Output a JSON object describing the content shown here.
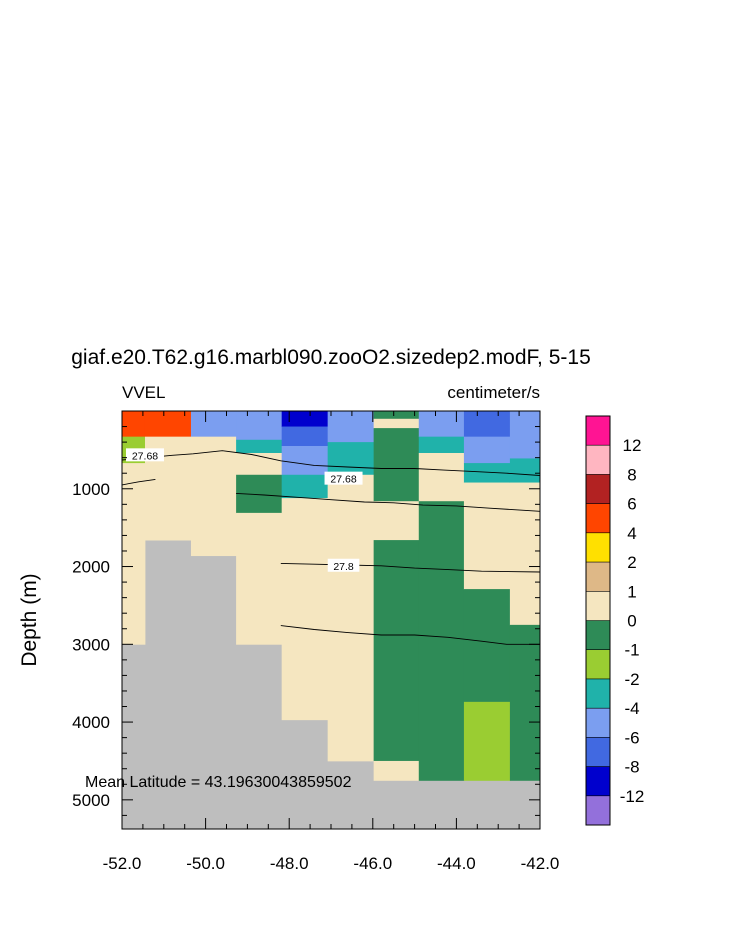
{
  "chart_data": {
    "type": "heatmap",
    "title": "giaf.e20.T62.g16.marbl090.zooO2.sizedep2.modF, 5-15",
    "left_label": "VVEL",
    "right_label": "centimeter/s",
    "ylabel": "Depth (m)",
    "annotation": "Mean Latitude = 43.19630043859502",
    "xlim": [
      -52.0,
      -42.0
    ],
    "ylim": [
      0,
      5375
    ],
    "y_inverted": true,
    "xticks": [
      -52.0,
      -50.0,
      -48.0,
      -46.0,
      -44.0,
      -42.0
    ],
    "xtick_labels": [
      "-52.0",
      "-50.0",
      "-48.0",
      "-46.0",
      "-44.0",
      "-42.0"
    ],
    "yticks": [
      1000,
      2000,
      3000,
      4000,
      5000
    ],
    "ytick_labels": [
      "1000",
      "2000",
      "3000",
      "4000",
      "5000"
    ],
    "missing_color": "#bebebe",
    "colorbar": {
      "levels": [
        "12",
        "8",
        "6",
        "4",
        "2",
        "1",
        "0",
        "-1",
        "-2",
        "-4",
        "-6",
        "-8",
        "-12"
      ],
      "colors": [
        "#ff1493",
        "#ffb6c1",
        "#b22222",
        "#ff4500",
        "#ffe000",
        "#deb887",
        "#f5e6c0",
        "#2e8b57",
        "#9acd32",
        "#20b2aa",
        "#7b9ef0",
        "#4169e1",
        "#0000cd",
        "#9370db"
      ]
    },
    "columns": [
      {
        "x0": -52.0,
        "x1": -51.45,
        "cells": [
          [
            0,
            330,
            3
          ],
          [
            330,
            670,
            8
          ],
          [
            670,
            3000,
            6
          ]
        ]
      },
      {
        "x0": -51.45,
        "x1": -50.35,
        "cells": [
          [
            0,
            330,
            3
          ],
          [
            330,
            1660,
            6
          ]
        ]
      },
      {
        "x0": -50.35,
        "x1": -49.27,
        "cells": [
          [
            0,
            330,
            10
          ],
          [
            330,
            1860,
            6
          ]
        ]
      },
      {
        "x0": -49.27,
        "x1": -48.18,
        "cells": [
          [
            0,
            370,
            10
          ],
          [
            370,
            540,
            9
          ],
          [
            540,
            820,
            6
          ],
          [
            820,
            1310,
            7
          ],
          [
            1310,
            3000,
            6
          ]
        ]
      },
      {
        "x0": -48.18,
        "x1": -47.08,
        "cells": [
          [
            0,
            200,
            12
          ],
          [
            200,
            450,
            11
          ],
          [
            450,
            820,
            10
          ],
          [
            820,
            1120,
            9
          ],
          [
            1120,
            3970,
            6
          ]
        ]
      },
      {
        "x0": -47.08,
        "x1": -45.98,
        "cells": [
          [
            0,
            400,
            10
          ],
          [
            400,
            820,
            9
          ],
          [
            820,
            4500,
            6
          ]
        ]
      },
      {
        "x0": -45.98,
        "x1": -44.9,
        "cells": [
          [
            0,
            100,
            7
          ],
          [
            100,
            220,
            6
          ],
          [
            220,
            1160,
            7
          ],
          [
            1160,
            1660,
            6
          ],
          [
            1660,
            4500,
            7
          ],
          [
            4500,
            4750,
            6
          ]
        ]
      },
      {
        "x0": -44.9,
        "x1": -43.82,
        "cells": [
          [
            0,
            330,
            10
          ],
          [
            330,
            540,
            9
          ],
          [
            540,
            1160,
            6
          ],
          [
            1160,
            4750,
            7
          ]
        ]
      },
      {
        "x0": -43.82,
        "x1": -42.72,
        "cells": [
          [
            0,
            330,
            11
          ],
          [
            330,
            670,
            10
          ],
          [
            670,
            920,
            9
          ],
          [
            920,
            2290,
            6
          ],
          [
            2290,
            3740,
            7
          ],
          [
            3740,
            4750,
            8
          ],
          [
            4750,
            4750,
            7
          ]
        ]
      },
      {
        "x0": -42.72,
        "x1": -42.0,
        "cells": [
          [
            0,
            610,
            10
          ],
          [
            610,
            920,
            9
          ],
          [
            920,
            2750,
            6
          ],
          [
            2750,
            4750,
            7
          ]
        ]
      }
    ],
    "contours": [
      {
        "label": "27.68",
        "label_at": [
          -51.45,
          570
        ],
        "points": [
          [
            -52.0,
            630
          ],
          [
            -51.4,
            600
          ],
          [
            -50.8,
            570
          ],
          [
            -50.3,
            550
          ],
          [
            -49.6,
            510
          ],
          [
            -48.9,
            560
          ],
          [
            -48.2,
            640
          ],
          [
            -47.4,
            700
          ],
          [
            -46.6,
            720
          ],
          [
            -45.8,
            740
          ],
          [
            -45.0,
            740
          ],
          [
            -44.3,
            760
          ],
          [
            -43.5,
            780
          ],
          [
            -42.8,
            800
          ],
          [
            -42.0,
            830
          ]
        ]
      },
      {
        "label": "27.68",
        "label_at": [
          -46.7,
          870
        ],
        "points": [
          [
            -52.0,
            950
          ],
          [
            -51.6,
            910
          ],
          [
            -51.2,
            880
          ]
        ]
      },
      {
        "label": "",
        "label_at": null,
        "points": [
          [
            -49.27,
            1060
          ],
          [
            -48.6,
            1080
          ],
          [
            -47.8,
            1110
          ],
          [
            -47.0,
            1140
          ],
          [
            -46.2,
            1170
          ],
          [
            -45.5,
            1180
          ],
          [
            -44.8,
            1210
          ],
          [
            -44.0,
            1220
          ],
          [
            -43.2,
            1250
          ],
          [
            -42.0,
            1290
          ]
        ]
      },
      {
        "label": "27.8",
        "label_at": [
          -46.7,
          1990
        ],
        "points": [
          [
            -48.2,
            1960
          ],
          [
            -47.4,
            1970
          ],
          [
            -46.6,
            1980
          ],
          [
            -45.8,
            1990
          ],
          [
            -45.0,
            2020
          ],
          [
            -44.2,
            2040
          ],
          [
            -43.4,
            2060
          ],
          [
            -42.0,
            2070
          ]
        ]
      },
      {
        "label": "",
        "label_at": null,
        "points": [
          [
            -48.2,
            2760
          ],
          [
            -47.4,
            2810
          ],
          [
            -46.6,
            2850
          ],
          [
            -45.8,
            2880
          ],
          [
            -45.0,
            2880
          ],
          [
            -44.2,
            2910
          ],
          [
            -43.4,
            2960
          ],
          [
            -42.8,
            3000
          ],
          [
            -42.0,
            3000
          ]
        ]
      }
    ]
  }
}
